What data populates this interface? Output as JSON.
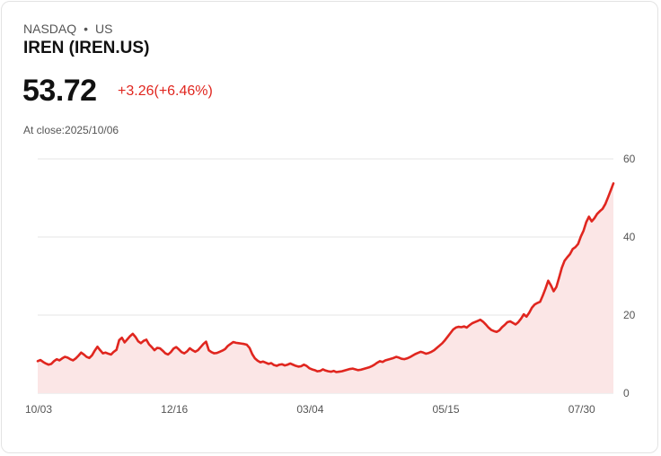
{
  "header": {
    "exchange": "NASDAQ",
    "separator": "•",
    "market": "US",
    "name": "IREN (IREN.US)"
  },
  "quote": {
    "price": "53.72",
    "change": "+3.26(+6.46%)",
    "close_text": "At close:2025/10/06"
  },
  "colors": {
    "line": "#e0261f",
    "fill": "#fbe6e6",
    "grid": "#e6e6e6"
  },
  "chart_data": {
    "type": "area",
    "title": "IREN (IREN.US)",
    "xlabel": "",
    "ylabel": "",
    "ylim": [
      0,
      60
    ],
    "yticks": [
      0,
      20,
      40,
      60
    ],
    "x_ticks": [
      {
        "label": "10/03",
        "index": 0
      },
      {
        "label": "12/16",
        "index": 50
      },
      {
        "label": "03/04",
        "index": 100
      },
      {
        "label": "05/15",
        "index": 150
      },
      {
        "label": "07/30",
        "index": 200
      }
    ],
    "y_axis_side": "right",
    "grid": true,
    "series": [
      {
        "name": "IREN",
        "values": [
          8.2,
          8.5,
          8.0,
          7.6,
          7.3,
          7.5,
          8.2,
          8.7,
          8.4,
          8.9,
          9.3,
          9.1,
          8.7,
          8.4,
          8.9,
          9.6,
          10.4,
          9.9,
          9.3,
          9.0,
          9.7,
          10.9,
          11.9,
          11.0,
          10.2,
          10.4,
          10.1,
          9.9,
          10.6,
          11.1,
          13.6,
          14.2,
          13.0,
          13.8,
          14.6,
          15.2,
          14.4,
          13.3,
          12.8,
          13.4,
          13.7,
          12.5,
          11.8,
          11.0,
          11.6,
          11.5,
          10.9,
          10.2,
          9.9,
          10.5,
          11.4,
          11.8,
          11.2,
          10.5,
          10.2,
          10.7,
          11.5,
          11.0,
          10.6,
          11.0,
          11.8,
          12.6,
          13.2,
          11.0,
          10.5,
          10.2,
          10.3,
          10.6,
          10.9,
          11.3,
          12.1,
          12.6,
          13.1,
          12.9,
          12.8,
          12.7,
          12.6,
          12.4,
          11.6,
          10.0,
          8.9,
          8.3,
          7.9,
          8.1,
          7.8,
          7.5,
          7.7,
          7.2,
          7.0,
          7.3,
          7.4,
          7.1,
          7.3,
          7.6,
          7.3,
          7.0,
          6.8,
          6.9,
          7.3,
          7.0,
          6.4,
          6.1,
          5.9,
          5.6,
          5.7,
          6.1,
          5.8,
          5.6,
          5.5,
          5.7,
          5.4,
          5.5,
          5.6,
          5.8,
          6.0,
          6.2,
          6.3,
          6.1,
          5.9,
          6.0,
          6.2,
          6.4,
          6.6,
          6.9,
          7.3,
          7.8,
          8.2,
          8.0,
          8.4,
          8.6,
          8.8,
          9.0,
          9.3,
          9.1,
          8.8,
          8.7,
          8.9,
          9.2,
          9.6,
          10.0,
          10.3,
          10.6,
          10.4,
          10.1,
          10.3,
          10.6,
          11.0,
          11.6,
          12.2,
          12.8,
          13.6,
          14.5,
          15.4,
          16.3,
          16.8,
          17.0,
          16.9,
          17.1,
          16.8,
          17.4,
          17.9,
          18.2,
          18.5,
          18.8,
          18.3,
          17.6,
          16.8,
          16.2,
          15.9,
          15.7,
          16.1,
          16.9,
          17.5,
          18.2,
          18.4,
          18.0,
          17.6,
          18.2,
          19.1,
          20.2,
          19.6,
          20.6,
          21.9,
          22.7,
          23.1,
          23.4,
          25.0,
          26.8,
          28.8,
          27.6,
          26.1,
          27.2,
          29.6,
          32.1,
          33.9,
          34.8,
          35.6,
          36.9,
          37.4,
          38.2,
          40.1,
          41.6,
          43.8,
          45.2,
          44.0,
          44.8,
          45.9,
          46.6,
          47.2,
          48.4,
          50.1,
          51.9,
          53.72
        ]
      }
    ]
  }
}
